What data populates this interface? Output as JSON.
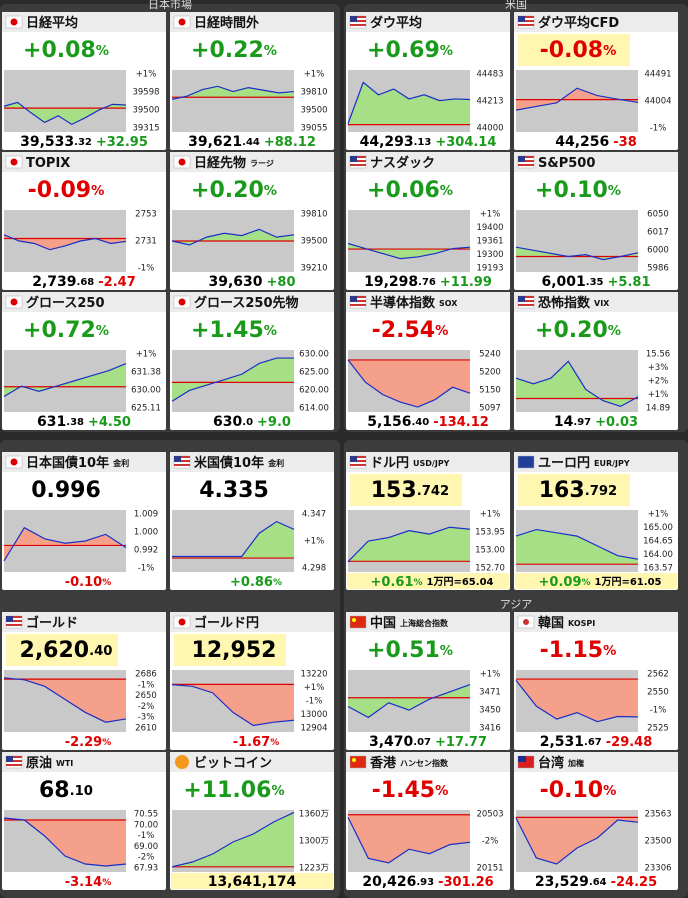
{
  "sections": [
    "日本市場",
    "米国",
    "アジア"
  ],
  "tiles": [
    {
      "name": "日経平均",
      "flag": "jp",
      "color": "#1a9a1a",
      "top": [
        "+0.08",
        "%"
      ],
      "bottom": [
        "39,533",
        ".32"
      ],
      "change": [
        "+32.95"
      ],
      "labels": [
        "+1%",
        "39598",
        "39500",
        "39315"
      ],
      "ylim": [
        39250,
        39900
      ],
      "base": 39500,
      "line": [
        39520,
        39560,
        39450,
        39350,
        39420,
        39330,
        39400,
        39480,
        39540,
        39533
      ]
    },
    {
      "name": "日経時間外",
      "flag": "jp",
      "color": "#1a9a1a",
      "top": [
        "+0.22",
        "%"
      ],
      "bottom": [
        "39,621",
        ".44"
      ],
      "change": [
        "+88.12"
      ],
      "labels": [
        "+1%",
        "39810",
        "39500",
        "39055"
      ],
      "ylim": [
        39000,
        39950
      ],
      "base": 39533,
      "line": [
        39500,
        39550,
        39650,
        39700,
        39620,
        39680,
        39640,
        39600,
        39620
      ]
    },
    {
      "name": "ダウ平均",
      "flag": "us",
      "color": "#1a9a1a",
      "top": [
        "+0.69",
        "%"
      ],
      "bottom": [
        "44,293",
        ".13"
      ],
      "change": [
        "+304.14"
      ],
      "labels": [
        "44483",
        "44213",
        "44000"
      ],
      "ylim": [
        43900,
        44650
      ],
      "base": 43989,
      "line": [
        44000,
        44500,
        44350,
        44420,
        44300,
        44350,
        44280,
        44300,
        44293
      ]
    },
    {
      "name": "ダウ平均CFD",
      "flag": "us",
      "color": "#e00000",
      "top_bg": "#fff6b0",
      "top": [
        "-0.08",
        "%"
      ],
      "bottom": [
        "44,256"
      ],
      "change": [
        "-38"
      ],
      "labels": [
        "44491",
        "44004",
        "-1%"
      ],
      "ylim": [
        43850,
        44700
      ],
      "base": 44294,
      "line": [
        44150,
        44200,
        44250,
        44450,
        44350,
        44300,
        44256
      ]
    },
    {
      "name": "TOPIX",
      "flag": "jp",
      "color": "#e00000",
      "top": [
        "-0.09",
        "%"
      ],
      "bottom": [
        "2,739",
        ".68"
      ],
      "change": [
        "-2.47"
      ],
      "labels": [
        "2753",
        "2731",
        "-1%"
      ],
      "ylim": [
        2715,
        2765
      ],
      "base": 2742,
      "line": [
        2745,
        2740,
        2738,
        2733,
        2736,
        2740,
        2742,
        2738,
        2739.68
      ]
    },
    {
      "name": "日経先物",
      "sub": "ラージ",
      "flag": "jp",
      "color": "#1a9a1a",
      "top": [
        "+0.20",
        "%"
      ],
      "bottom": [
        "39,630"
      ],
      "change": [
        "+80"
      ],
      "labels": [
        "39810",
        "39500",
        "39210"
      ],
      "ylim": [
        39150,
        39950
      ],
      "base": 39550,
      "line": [
        39550,
        39500,
        39600,
        39650,
        39620,
        39700,
        39600,
        39630
      ]
    },
    {
      "name": "ナスダック",
      "flag": "us",
      "color": "#1a9a1a",
      "top": [
        "+0.06",
        "%"
      ],
      "bottom": [
        "19,298",
        ".76"
      ],
      "change": [
        "+11.99"
      ],
      "labels": [
        "+1%",
        "19400",
        "19361",
        "19300",
        "19193"
      ],
      "ylim": [
        19150,
        19520
      ],
      "base": 19287,
      "line": [
        19320,
        19290,
        19260,
        19230,
        19240,
        19260,
        19290,
        19298
      ]
    },
    {
      "name": "S&P500",
      "flag": "us",
      "color": "#1a9a1a",
      "top": [
        "+0.10",
        "%"
      ],
      "bottom": [
        "6,001",
        ".35"
      ],
      "change": [
        "+5.81"
      ],
      "labels": [
        "6050",
        "6017",
        "6000",
        "5986"
      ],
      "ylim": [
        5970,
        6070
      ],
      "base": 5995,
      "line": [
        6010,
        6005,
        6000,
        5995,
        5998,
        5990,
        5995,
        6001
      ]
    },
    {
      "name": "グロース250",
      "flag": "jp",
      "color": "#1a9a1a",
      "top": [
        "+0.72",
        "%"
      ],
      "bottom": [
        "631",
        ".38"
      ],
      "change": [
        "+4.50"
      ],
      "labels": [
        "+1%",
        "631.38",
        "630.00",
        "625.11"
      ],
      "ylim": [
        622,
        634
      ],
      "base": 626.88,
      "line": [
        625,
        627,
        626,
        627,
        628,
        629,
        630,
        631.38
      ]
    },
    {
      "name": "グロース250先物",
      "flag": "jp",
      "color": "#1a9a1a",
      "top": [
        "+1.45",
        "%"
      ],
      "bottom": [
        "630",
        ".0"
      ],
      "change": [
        "+9.0"
      ],
      "labels": [
        "630.00",
        "625.00",
        "620.00",
        "614.00"
      ],
      "ylim": [
        610,
        633
      ],
      "base": 621,
      "line": [
        614,
        618,
        620,
        622,
        624,
        628,
        630,
        630
      ]
    },
    {
      "name": "半導体指数",
      "sub": "SOX",
      "flag": "us",
      "color": "#e00000",
      "top": [
        "-2.54",
        "%"
      ],
      "bottom": [
        "5,156",
        ".40"
      ],
      "change": [
        "-134.12"
      ],
      "labels": [
        "5240",
        "5200",
        "5150",
        "5097"
      ],
      "ylim": [
        5080,
        5330
      ],
      "base": 5290,
      "line": [
        5290,
        5200,
        5150,
        5120,
        5100,
        5130,
        5180,
        5156
      ]
    },
    {
      "name": "恐怖指数",
      "sub": "VIX",
      "flag": "us",
      "color": "#1a9a1a",
      "top": [
        "+0.20",
        "%"
      ],
      "bottom": [
        "14",
        ".97"
      ],
      "change": [
        "+0.03"
      ],
      "labels": [
        "15.56",
        "+3%",
        "+2%",
        "+1%",
        "14.89"
      ],
      "ylim": [
        14.7,
        15.8
      ],
      "base": 14.94,
      "line": [
        15.3,
        15.2,
        15.3,
        15.6,
        15.1,
        14.9,
        14.8,
        14.97
      ]
    },
    {
      "name": "日本国債10年",
      "sub": "金利",
      "flag": "jp",
      "color": "#e00000",
      "top_color": "#000000",
      "top": [
        "0.996"
      ],
      "change": [
        "-0.10",
        "%"
      ],
      "labels": [
        "1.009",
        "1.000",
        "0.992",
        "-1%"
      ],
      "ylim": [
        0.985,
        1.013
      ],
      "base": 0.997,
      "line": [
        0.99,
        1.005,
        1.0,
        0.998,
        0.999,
        1.002,
        0.996
      ]
    },
    {
      "name": "米国債10年",
      "sub": "金利",
      "flag": "us",
      "color": "#1a9a1a",
      "top_color": "#000000",
      "top": [
        "4.335"
      ],
      "change": [
        "+0.86",
        "%"
      ],
      "labels": [
        "4.347",
        "+1%",
        "4.298"
      ],
      "ylim": [
        4.28,
        4.36
      ],
      "base": 4.298,
      "line": [
        4.3,
        4.3,
        4.3,
        4.3,
        4.3,
        4.33,
        4.345,
        4.335
      ]
    },
    {
      "name": "ドル円",
      "sub": "USD/JPY",
      "flag": "us",
      "color": "#1a9a1a",
      "top_color": "#000000",
      "top_bg": "#fff6b0",
      "bottom_bg": "#fff6b0",
      "top": [
        "153",
        ".742"
      ],
      "change": [
        "+0.61",
        "%"
      ],
      "note": "1万円=65.04",
      "labels": [
        "+1%",
        "153.95",
        "153.00",
        "152.70"
      ],
      "ylim": [
        152.5,
        154.3
      ],
      "base": 152.81,
      "line": [
        152.8,
        153.4,
        153.5,
        153.7,
        153.6,
        153.8,
        153.742
      ]
    },
    {
      "name": "ユーロ円",
      "sub": "EUR/JPY",
      "flag": "eu",
      "color": "#1a9a1a",
      "top_color": "#000000",
      "top_bg": "#fff6b0",
      "bottom_bg": "#fff6b0",
      "top": [
        "163",
        ".792"
      ],
      "change": [
        "+0.09",
        "%"
      ],
      "note": "1万円=61.05",
      "labels": [
        "+1%",
        "165.00",
        "164.65",
        "164.00",
        "163.57"
      ],
      "ylim": [
        163.4,
        165.3
      ],
      "base": 163.64,
      "line": [
        164.5,
        164.7,
        164.6,
        164.5,
        164.2,
        163.9,
        163.792
      ]
    },
    {
      "name": "ゴールド",
      "flag": "us",
      "color": "#e00000",
      "top_color": "#000000",
      "top_bg": "#fff6b0",
      "top": [
        "2,620",
        ".40"
      ],
      "change": [
        "-2.29",
        "%"
      ],
      "labels": [
        "2686",
        "-1%",
        "2650",
        "-2%",
        "-3%",
        "2610"
      ],
      "ylim": [
        2600,
        2695
      ],
      "base": 2681,
      "line": [
        2683,
        2680,
        2670,
        2650,
        2630,
        2615,
        2620
      ]
    },
    {
      "name": "ゴールド円",
      "flag": "jp",
      "color": "#e00000",
      "top_color": "#000000",
      "top_bg": "#fff6b0",
      "top": [
        "12,952"
      ],
      "change": [
        "-1.67",
        "%"
      ],
      "labels": [
        "13220",
        "+1%",
        "-1%",
        "13000",
        "12904"
      ],
      "ylim": [
        12880,
        13260
      ],
      "base": 13172,
      "line": [
        13170,
        13160,
        13120,
        13000,
        12920,
        12940,
        12952
      ]
    },
    {
      "name": "中国",
      "sub": "上海総合指数",
      "flag": "cn",
      "color": "#1a9a1a",
      "top": [
        "+0.51",
        "%"
      ],
      "bottom": [
        "3,470",
        ".07"
      ],
      "change": [
        "+17.77"
      ],
      "labels": [
        "+1%",
        "3471",
        "3450",
        "3416"
      ],
      "ylim": [
        3405,
        3490
      ],
      "base": 3452,
      "line": [
        3440,
        3425,
        3445,
        3435,
        3450,
        3460,
        3470
      ]
    },
    {
      "name": "韓国",
      "sub": "KOSPI",
      "flag": "kr",
      "color": "#e00000",
      "top": [
        "-1.15",
        "%"
      ],
      "bottom": [
        "2,531",
        ".67"
      ],
      "change": [
        "-29.48"
      ],
      "labels": [
        "2562",
        "2550",
        "-1%",
        "2525"
      ],
      "ylim": [
        2520,
        2568
      ],
      "base": 2561,
      "line": [
        2560,
        2540,
        2530,
        2535,
        2528,
        2532,
        2531.67
      ]
    },
    {
      "name": "原油",
      "sub": "WTI",
      "flag": "us",
      "color": "#e00000",
      "top_color": "#000000",
      "top": [
        "68",
        ".10"
      ],
      "change": [
        "-3.14",
        "%"
      ],
      "labels": [
        "70.55",
        "70.00",
        "-1%",
        "69.00",
        "-2%",
        "67.93"
      ],
      "ylim": [
        67.7,
        70.8
      ],
      "base": 70.3,
      "line": [
        70.4,
        70.3,
        69.5,
        68.5,
        68.1,
        68.0,
        68.1
      ]
    },
    {
      "name": "ビットコイン",
      "flag": "btc",
      "color": "#1a9a1a",
      "bottom_bg": "#fff6b0",
      "top": [
        "+11.06",
        "%"
      ],
      "bottom": [
        "13,641,174"
      ],
      "labels": [
        "1360万",
        "1300万",
        "1223万"
      ],
      "ylim": [
        1215,
        1370
      ],
      "base": 1228,
      "line": [
        1228,
        1240,
        1260,
        1290,
        1310,
        1340,
        1364
      ]
    },
    {
      "name": "香港",
      "sub": "ハンセン指数",
      "flag": "hk",
      "color": "#e00000",
      "top": [
        "-1.45",
        "%"
      ],
      "bottom": [
        "20,426",
        ".93"
      ],
      "change": [
        "-301.26"
      ],
      "labels": [
        "20503",
        "-2%",
        "20151"
      ],
      "ylim": [
        20100,
        20780
      ],
      "base": 20728,
      "line": [
        20700,
        20250,
        20200,
        20350,
        20300,
        20400,
        20426
      ]
    },
    {
      "name": "台湾",
      "sub": "加権",
      "flag": "tw",
      "color": "#e00000",
      "top": [
        "-0.10",
        "%"
      ],
      "bottom": [
        "23,529",
        ".64"
      ],
      "change": [
        "-24.25"
      ],
      "labels": [
        "23563",
        "23500",
        "23306"
      ],
      "ylim": [
        23280,
        23590
      ],
      "base": 23553,
      "line": [
        23550,
        23350,
        23320,
        23400,
        23450,
        23540,
        23529
      ]
    }
  ]
}
